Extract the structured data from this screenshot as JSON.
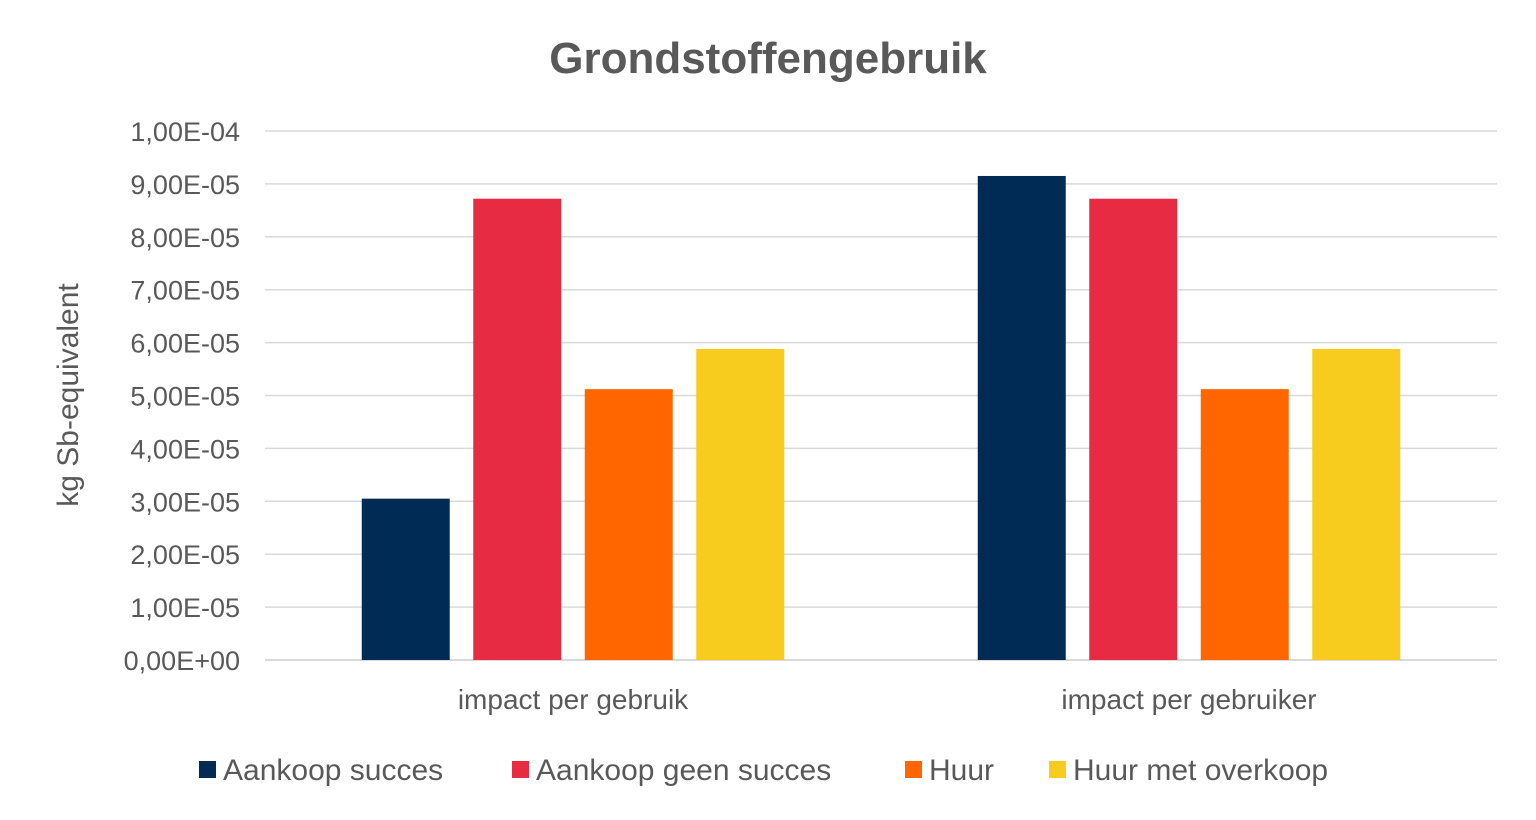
{
  "chart_data": {
    "type": "bar",
    "title": "Grondstoffengebruik",
    "ylabel": "kg Sb-equivalent",
    "xlabel": "",
    "categories": [
      "impact per gebruik",
      "impact per gebruiker"
    ],
    "series": [
      {
        "name": "Aankoop succes",
        "color": "#002B54",
        "values": [
          3.05e-05,
          9.15e-05
        ]
      },
      {
        "name": "Aankoop geen succes",
        "color": "#E62B43",
        "values": [
          8.72e-05,
          8.72e-05
        ]
      },
      {
        "name": "Huur",
        "color": "#FF6600",
        "values": [
          5.12e-05,
          5.12e-05
        ]
      },
      {
        "name": "Huur met overkoop",
        "color": "#F8CB1F",
        "values": [
          5.88e-05,
          5.88e-05
        ]
      }
    ],
    "ylim": [
      0,
      0.0001
    ],
    "ytick_labels": [
      "0,00E+00",
      "1,00E-05",
      "2,00E-05",
      "3,00E-05",
      "4,00E-05",
      "5,00E-05",
      "6,00E-05",
      "7,00E-05",
      "8,00E-05",
      "9,00E-05",
      "1,00E-04"
    ],
    "grid": true,
    "legend_position": "bottom"
  }
}
